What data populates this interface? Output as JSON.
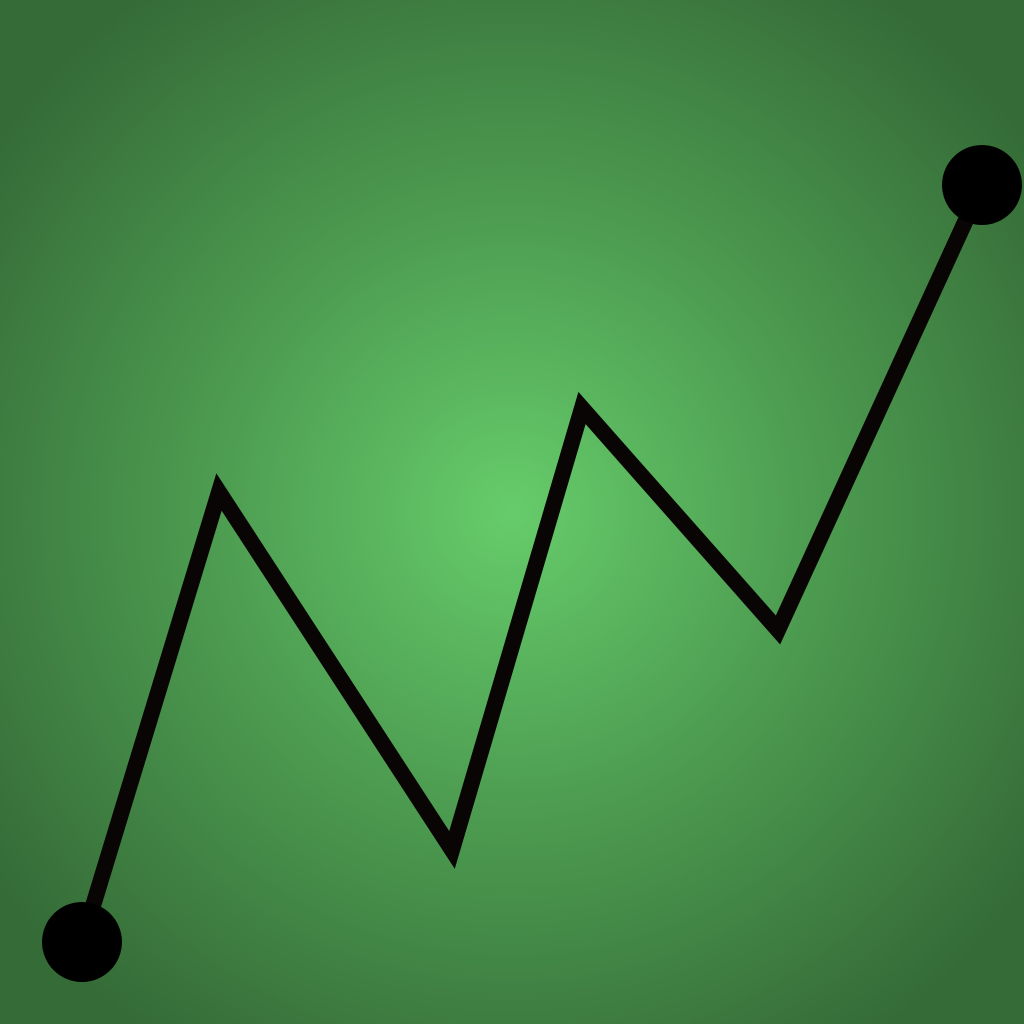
{
  "graphic": {
    "name": "zigzag-trend-icon",
    "colors": {
      "background_center": "#66cc6a",
      "background_mid": "#4e9e52",
      "background_edge": "#356b37",
      "stroke": "#0a0505",
      "endpoint": "#000000"
    }
  }
}
